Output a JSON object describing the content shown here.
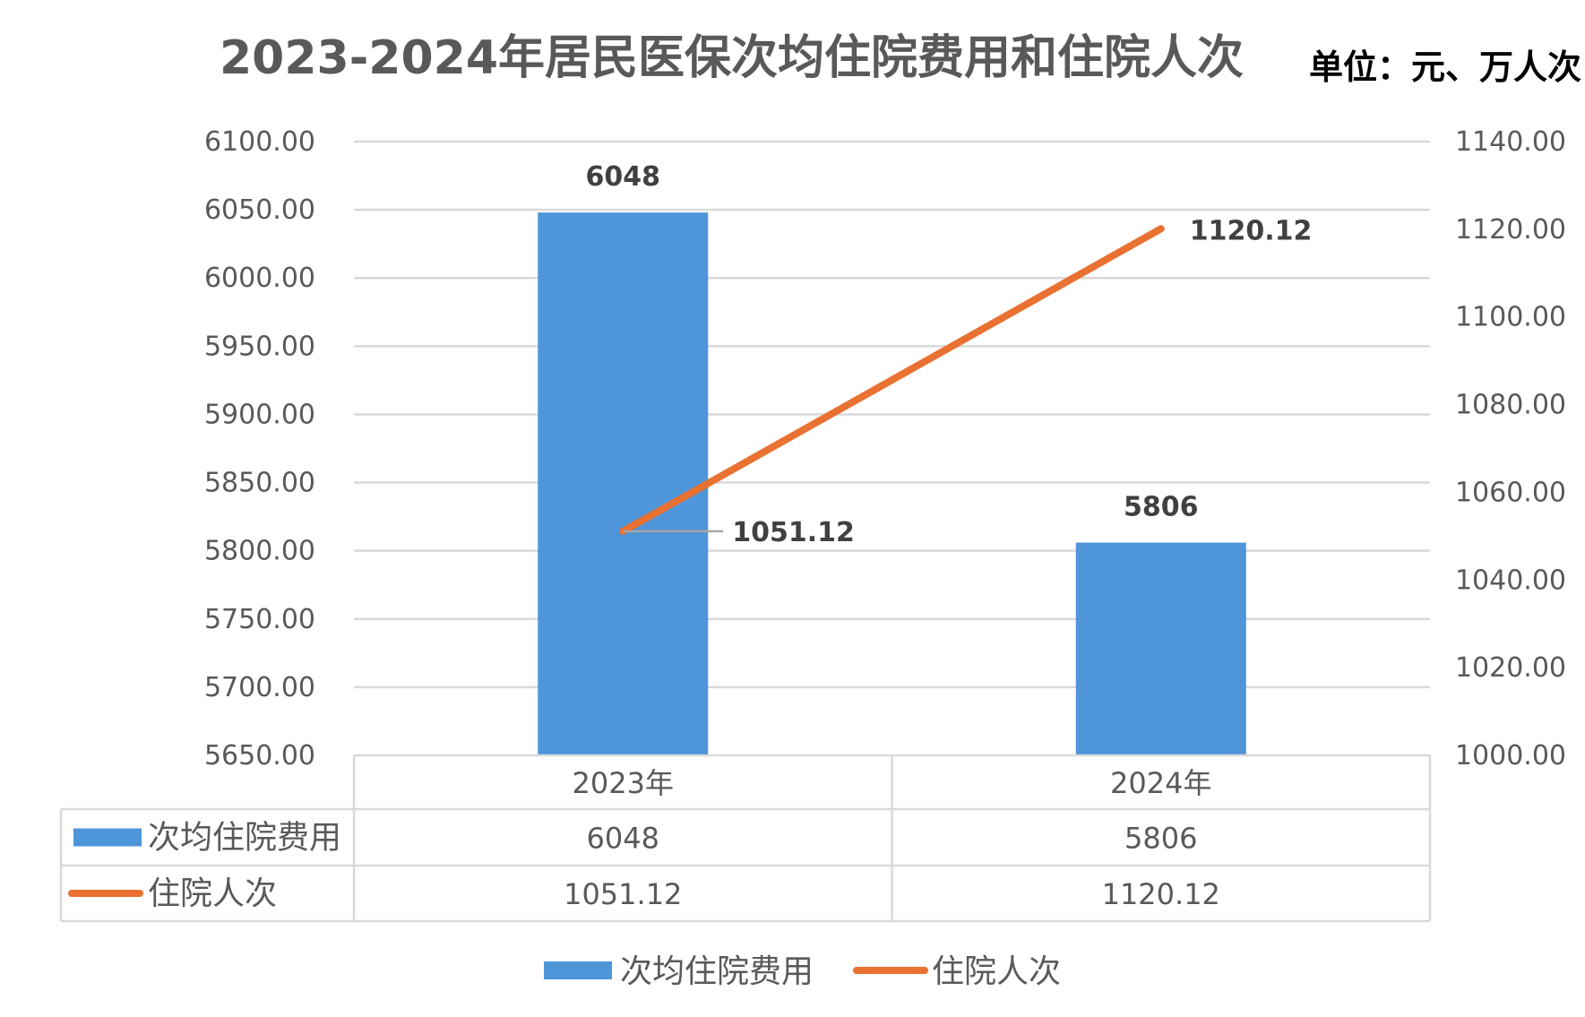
{
  "chart_data": {
    "type": "bar",
    "title": "2023-2024年居民医保次均住院费用和住院人次",
    "unit_label": "单位：元、万人次",
    "categories": [
      "2023年",
      "2024年"
    ],
    "series": [
      {
        "name": "次均住院费用",
        "type": "bar",
        "axis": "left",
        "values": [
          6048,
          5806
        ],
        "labels": [
          "6048",
          "5806"
        ],
        "color": "#4E95D9"
      },
      {
        "name": "住院人次",
        "type": "line",
        "axis": "right",
        "values": [
          1051.12,
          1120.12
        ],
        "labels": [
          "1051.12",
          "1120.12"
        ],
        "color": "#E97132"
      }
    ],
    "y_left": {
      "min": 5650,
      "max": 6100,
      "step": 50,
      "ticks": [
        "5650.00",
        "5700.00",
        "5750.00",
        "5800.00",
        "5850.00",
        "5900.00",
        "5950.00",
        "6000.00",
        "6050.00",
        "6100.00"
      ]
    },
    "y_right": {
      "min": 1000,
      "max": 1140,
      "step": 20,
      "ticks": [
        "1000.00",
        "1020.00",
        "1040.00",
        "1060.00",
        "1080.00",
        "1100.00",
        "1120.00",
        "1140.00"
      ]
    },
    "grid": true,
    "data_table": {
      "rows": [
        {
          "name": "次均住院费用",
          "values": [
            "6048",
            "5806"
          ]
        },
        {
          "name": "住院人次",
          "values": [
            "1051.12",
            "1120.12"
          ]
        }
      ]
    },
    "legend_position": "bottom"
  }
}
